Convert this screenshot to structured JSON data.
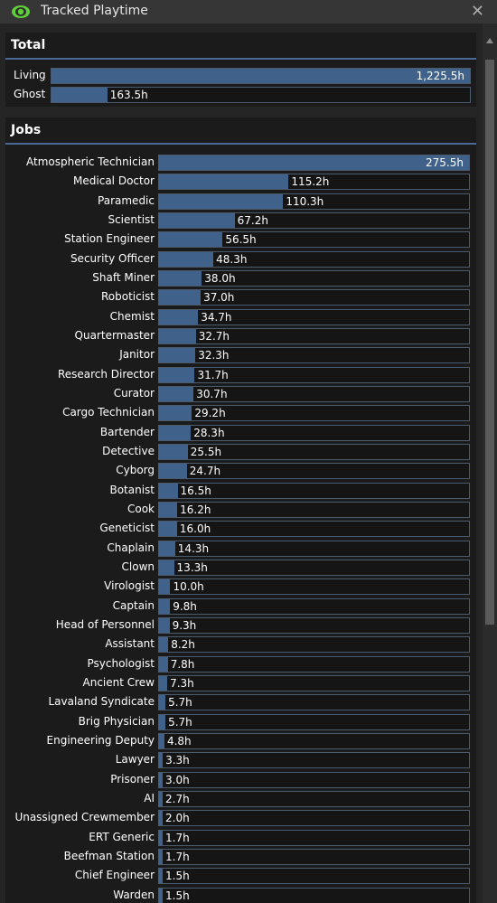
{
  "window": {
    "title": "Tracked Playtime",
    "close_glyph": "✕"
  },
  "total": {
    "heading": "Total",
    "items": [
      {
        "label": "Living",
        "value": "1,225.5h",
        "hours": 1225.5
      },
      {
        "label": "Ghost",
        "value": "163.5h",
        "hours": 163.5
      }
    ]
  },
  "jobs": {
    "heading": "Jobs",
    "items": [
      {
        "label": "Atmospheric Technician",
        "value": "275.5h",
        "hours": 275.5
      },
      {
        "label": "Medical Doctor",
        "value": "115.2h",
        "hours": 115.2
      },
      {
        "label": "Paramedic",
        "value": "110.3h",
        "hours": 110.3
      },
      {
        "label": "Scientist",
        "value": "67.2h",
        "hours": 67.2
      },
      {
        "label": "Station Engineer",
        "value": "56.5h",
        "hours": 56.5
      },
      {
        "label": "Security Officer",
        "value": "48.3h",
        "hours": 48.3
      },
      {
        "label": "Shaft Miner",
        "value": "38.0h",
        "hours": 38.0
      },
      {
        "label": "Roboticist",
        "value": "37.0h",
        "hours": 37.0
      },
      {
        "label": "Chemist",
        "value": "34.7h",
        "hours": 34.7
      },
      {
        "label": "Quartermaster",
        "value": "32.7h",
        "hours": 32.7
      },
      {
        "label": "Janitor",
        "value": "32.3h",
        "hours": 32.3
      },
      {
        "label": "Research Director",
        "value": "31.7h",
        "hours": 31.7
      },
      {
        "label": "Curator",
        "value": "30.7h",
        "hours": 30.7
      },
      {
        "label": "Cargo Technician",
        "value": "29.2h",
        "hours": 29.2
      },
      {
        "label": "Bartender",
        "value": "28.3h",
        "hours": 28.3
      },
      {
        "label": "Detective",
        "value": "25.5h",
        "hours": 25.5
      },
      {
        "label": "Cyborg",
        "value": "24.7h",
        "hours": 24.7
      },
      {
        "label": "Botanist",
        "value": "16.5h",
        "hours": 16.5
      },
      {
        "label": "Cook",
        "value": "16.2h",
        "hours": 16.2
      },
      {
        "label": "Geneticist",
        "value": "16.0h",
        "hours": 16.0
      },
      {
        "label": "Chaplain",
        "value": "14.3h",
        "hours": 14.3
      },
      {
        "label": "Clown",
        "value": "13.3h",
        "hours": 13.3
      },
      {
        "label": "Virologist",
        "value": "10.0h",
        "hours": 10.0
      },
      {
        "label": "Captain",
        "value": "9.8h",
        "hours": 9.8
      },
      {
        "label": "Head of Personnel",
        "value": "9.3h",
        "hours": 9.3
      },
      {
        "label": "Assistant",
        "value": "8.2h",
        "hours": 8.2
      },
      {
        "label": "Psychologist",
        "value": "7.8h",
        "hours": 7.8
      },
      {
        "label": "Ancient Crew",
        "value": "7.3h",
        "hours": 7.3
      },
      {
        "label": "Lavaland Syndicate",
        "value": "5.7h",
        "hours": 5.7
      },
      {
        "label": "Brig Physician",
        "value": "5.7h",
        "hours": 5.7
      },
      {
        "label": "Engineering Deputy",
        "value": "4.8h",
        "hours": 4.8
      },
      {
        "label": "Lawyer",
        "value": "3.3h",
        "hours": 3.3
      },
      {
        "label": "Prisoner",
        "value": "3.0h",
        "hours": 3.0
      },
      {
        "label": "AI",
        "value": "2.7h",
        "hours": 2.7
      },
      {
        "label": "Unassigned Crewmember",
        "value": "2.0h",
        "hours": 2.0
      },
      {
        "label": "ERT Generic",
        "value": "1.7h",
        "hours": 1.7
      },
      {
        "label": "Beefman Station",
        "value": "1.7h",
        "hours": 1.7
      },
      {
        "label": "Chief Engineer",
        "value": "1.5h",
        "hours": 1.5
      },
      {
        "label": "Warden",
        "value": "1.5h",
        "hours": 1.5
      }
    ]
  },
  "colors": {
    "bar_fill": "#40628a",
    "accent": "#4a6a96",
    "eye_icon": "#5fcf3a"
  }
}
